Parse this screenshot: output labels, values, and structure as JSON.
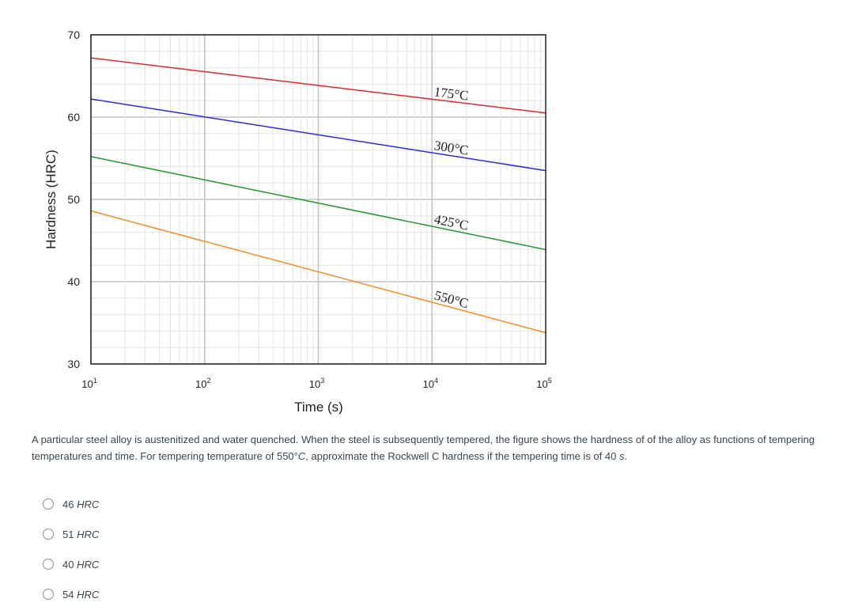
{
  "chart_data": {
    "type": "line",
    "xscale": "log",
    "xlabel": "Time (s)",
    "ylabel": "Hardness (HRC)",
    "xlim": [
      10,
      100000
    ],
    "ylim": [
      30,
      70
    ],
    "x_ticks": [
      "10",
      "10",
      "10",
      "10",
      "10"
    ],
    "x_tick_exponents": [
      "1",
      "2",
      "3",
      "4",
      "5"
    ],
    "y_ticks": [
      "30",
      "40",
      "50",
      "60",
      "70"
    ],
    "grid": true,
    "series": [
      {
        "name": "175°C",
        "color": "#e8262a",
        "x": [
          10,
          100000
        ],
        "y": [
          67.2,
          60.5
        ]
      },
      {
        "name": "300°C",
        "color": "#2929e8",
        "x": [
          10,
          100000
        ],
        "y": [
          62.2,
          53.5
        ]
      },
      {
        "name": "425°C",
        "color": "#22962a",
        "x": [
          10,
          100000
        ],
        "y": [
          55.2,
          43.9
        ]
      },
      {
        "name": "550°C",
        "color": "#f88a1f",
        "x": [
          10,
          100000
        ],
        "y": [
          48.6,
          33.8
        ]
      }
    ]
  },
  "question": {
    "text_before": "A particular steel alloy is austenitized and water quenched. When the steel is subsequently tempered, the figure shows the hardness of of the alloy as functions of tempering temperatures and time. For tempering temperature of 550°",
    "temp_unit": "C",
    "text_middle": ", approximate the Rockwell C hardness if the tempering time is of 40 ",
    "time_unit": "s",
    "text_end": "."
  },
  "options": [
    {
      "value": "46",
      "unit": "HRC"
    },
    {
      "value": "51",
      "unit": "HRC"
    },
    {
      "value": "40",
      "unit": "HRC"
    },
    {
      "value": "54",
      "unit": "HRC"
    }
  ]
}
